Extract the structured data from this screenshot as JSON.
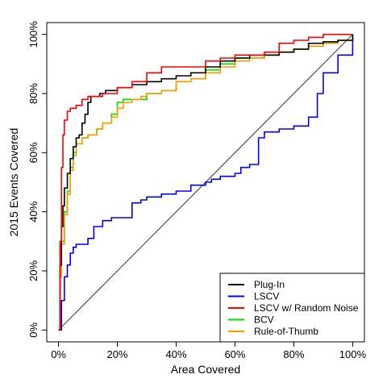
{
  "chart_data": {
    "type": "line",
    "xlabel": "Area Covered",
    "ylabel": "2015 Events Covered",
    "xlim": [
      0,
      100
    ],
    "ylim": [
      0,
      100
    ],
    "xticks": [
      "0%",
      "20%",
      "40%",
      "60%",
      "80%",
      "100%"
    ],
    "yticks": [
      "0%",
      "20%",
      "40%",
      "60%",
      "80%",
      "100%"
    ],
    "grid": false,
    "legend_position": "bottom-right",
    "reference_line": {
      "x": [
        0,
        100
      ],
      "y": [
        0,
        100
      ],
      "color": "#333333"
    },
    "series": [
      {
        "name": "Plug-In",
        "color": "#000000",
        "x": [
          0,
          0.5,
          1,
          1.5,
          2,
          3,
          4,
          5,
          6,
          7,
          8,
          9,
          10,
          11,
          12,
          14,
          16,
          20,
          25,
          30,
          35,
          40,
          45,
          50,
          55,
          60,
          65,
          70,
          75,
          80,
          85,
          86,
          90,
          95,
          100
        ],
        "y": [
          0,
          22,
          35,
          42,
          48,
          53,
          58,
          62,
          65,
          66,
          70,
          73,
          77,
          79,
          79,
          80,
          81,
          82,
          83,
          84,
          85,
          86,
          87,
          89,
          91,
          92,
          93,
          93,
          94,
          95,
          97,
          97,
          97.5,
          98,
          100
        ]
      },
      {
        "name": "LSCV",
        "color": "#0000ff",
        "x": [
          0,
          1,
          2,
          3,
          4,
          5,
          6,
          8,
          10,
          12,
          15,
          18,
          20,
          25,
          28,
          30,
          35,
          40,
          45,
          50,
          52,
          55,
          60,
          62,
          65,
          68,
          70,
          75,
          80,
          85,
          88,
          90,
          95,
          100
        ],
        "y": [
          0,
          10,
          18,
          22,
          26,
          28,
          29,
          29,
          31,
          35,
          37,
          38,
          38,
          43,
          44,
          45,
          46,
          47,
          49,
          50,
          51,
          52,
          53,
          55,
          56,
          65,
          67,
          68,
          69,
          72,
          80,
          87,
          93,
          100
        ]
      },
      {
        "name": "LSCV w/ Random Noise",
        "color": "#ff0000",
        "x": [
          0,
          0.5,
          1,
          1.5,
          2,
          3,
          4,
          6,
          8,
          10,
          12,
          15,
          20,
          25,
          30,
          35,
          40,
          45,
          50,
          55,
          60,
          65,
          70,
          75,
          80,
          85,
          90,
          95,
          100
        ],
        "y": [
          0,
          30,
          55,
          66,
          71,
          74,
          75,
          76,
          78,
          79,
          79,
          80,
          82,
          84,
          87,
          89,
          89,
          89,
          91,
          92,
          93,
          93,
          94,
          97,
          98,
          99,
          100,
          100,
          100
        ]
      },
      {
        "name": "BCV",
        "color": "#00dd00",
        "x": [
          0,
          0.5,
          1,
          2,
          3,
          4,
          5,
          6,
          8,
          10,
          13,
          15,
          18,
          20,
          22,
          25,
          28,
          30,
          35,
          40,
          45,
          50,
          55,
          60,
          65,
          70,
          75,
          80,
          85,
          90,
          95,
          100
        ],
        "y": [
          0,
          18,
          30,
          40,
          47,
          55,
          60,
          63,
          65,
          66,
          68,
          70,
          73,
          77,
          78,
          78,
          78,
          80,
          81,
          84,
          85,
          88,
          90,
          92,
          92,
          93,
          94,
          95,
          96,
          97,
          98,
          100
        ]
      },
      {
        "name": "Rule-of-Thumb",
        "color": "#ff9900",
        "x": [
          0,
          0.5,
          1,
          2,
          3,
          4,
          5,
          6,
          8,
          10,
          13,
          15,
          18,
          20,
          22,
          25,
          28,
          30,
          35,
          40,
          45,
          50,
          55,
          60,
          65,
          70,
          75,
          80,
          85,
          90,
          95,
          100
        ],
        "y": [
          0,
          18,
          29,
          39,
          46,
          54,
          59,
          63,
          65,
          66,
          68,
          70,
          72,
          75,
          77,
          78,
          79,
          80,
          81,
          84,
          85,
          87,
          89,
          91,
          92,
          93,
          94,
          95,
          96,
          97,
          98,
          100
        ]
      }
    ]
  }
}
